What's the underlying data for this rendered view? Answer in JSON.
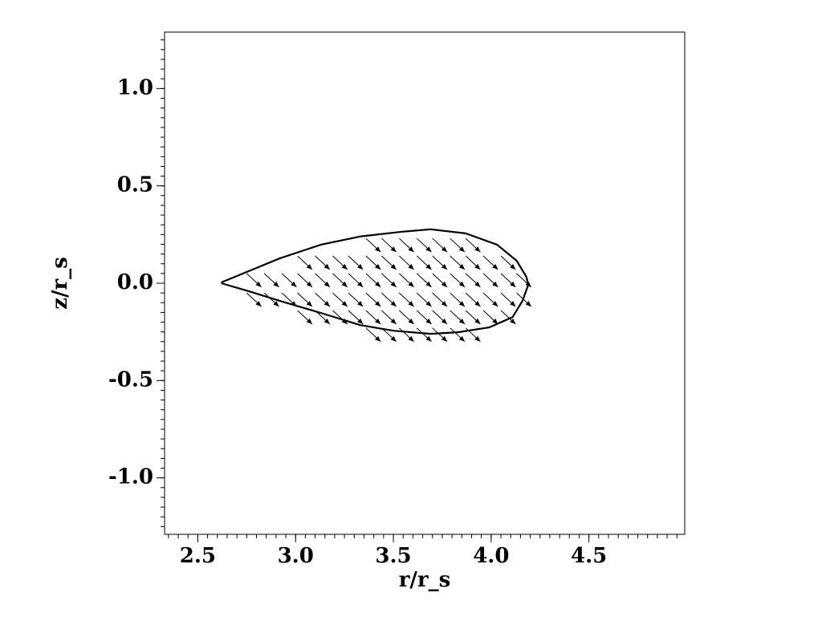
{
  "chart_data": {
    "type": "quiver",
    "xlabel": "r/r_s",
    "ylabel": "z/r_s",
    "xlim": [
      2.33,
      4.99
    ],
    "ylim": [
      -1.29,
      1.29
    ],
    "xticks": [
      2.5,
      {
        "value": 3,
        "label": "3.0"
      },
      3.5,
      {
        "value": 4,
        "label": "4.0"
      },
      4.5
    ],
    "yticks": [
      {
        "value": -1,
        "label": "-1.0"
      },
      -0.5,
      {
        "value": 0,
        "label": "0.0"
      },
      0.5,
      {
        "value": 1,
        "label": "1.0"
      }
    ],
    "xminorticks": [
      2.35,
      2.4,
      2.45,
      2.5,
      2.55,
      2.6,
      2.65,
      2.7,
      2.75,
      2.8,
      2.85,
      2.9,
      2.95,
      3,
      3.05,
      3.1,
      3.15,
      3.2,
      3.25,
      3.3,
      3.35,
      3.4,
      3.45,
      3.5,
      3.55,
      3.6,
      3.65,
      3.7,
      3.75,
      3.8,
      3.85,
      3.9,
      3.95,
      4,
      4.05,
      4.1,
      4.15,
      4.2,
      4.25,
      4.3,
      4.35,
      4.4,
      4.45,
      4.5,
      4.55,
      4.6,
      4.65,
      4.7,
      4.75,
      4.8,
      4.85,
      4.9,
      4.95
    ],
    "yminorticks": [
      -1.25,
      -1.2,
      -1.15,
      -1.1,
      -1.05,
      -1,
      -0.95,
      -0.9,
      -0.85,
      -0.8,
      -0.75,
      -0.7,
      -0.65,
      -0.6,
      -0.55,
      -0.5,
      -0.45,
      -0.4,
      -0.35,
      -0.3,
      -0.25,
      -0.2,
      -0.15,
      -0.1,
      -0.05,
      0,
      0.05,
      0.1,
      0.15,
      0.2,
      0.25,
      0.3,
      0.35,
      0.4,
      0.45,
      0.5,
      0.55,
      0.6,
      0.65,
      0.7,
      0.75,
      0.8,
      0.85,
      0.9,
      0.95,
      1,
      1.05,
      1.1,
      1.15,
      1.2,
      1.25
    ],
    "contour": {
      "color": "#000000",
      "x": [
        2.62,
        2.76,
        2.92,
        3.13,
        3.33,
        3.54,
        3.69,
        3.87,
        4.03,
        4.13,
        4.18,
        4.19,
        4.16,
        4.11,
        3.99,
        3.83,
        3.69,
        3.5,
        3.33,
        3.13,
        2.92,
        2.76,
        2.62
      ],
      "y": [
        0.004,
        0.062,
        0.128,
        0.198,
        0.24,
        0.264,
        0.277,
        0.256,
        0.198,
        0.116,
        0.033,
        -0.008,
        -0.091,
        -0.174,
        -0.227,
        -0.252,
        -0.26,
        -0.244,
        -0.215,
        -0.153,
        -0.091,
        -0.041,
        0
      ]
    },
    "arrows": {
      "color": "#000000",
      "rows": [
        {
          "y": 0.23,
          "x": [
            3.36,
            3.44,
            3.53,
            3.62,
            3.7,
            3.79,
            3.87
          ],
          "u": [
            0.075,
            0.075,
            0.075,
            0.075,
            0.075,
            0.075,
            0.075
          ],
          "v": [
            -0.07,
            -0.07,
            -0.07,
            -0.07,
            -0.07,
            -0.07,
            -0.07
          ]
        },
        {
          "y": 0.14,
          "x": [
            3.01,
            3.1,
            3.19,
            3.27,
            3.36,
            3.44,
            3.53,
            3.62,
            3.7,
            3.79,
            3.87,
            3.96,
            4.05
          ],
          "u": [
            0.075,
            0.075,
            0.075,
            0.075,
            0.075,
            0.075,
            0.075,
            0.075,
            0.075,
            0.075,
            0.075,
            0.075,
            0.075
          ],
          "v": [
            -0.07,
            -0.07,
            -0.07,
            -0.07,
            -0.07,
            -0.07,
            -0.07,
            -0.07,
            -0.07,
            -0.07,
            -0.07,
            -0.07,
            -0.07
          ]
        },
        {
          "y": 0.05,
          "x": [
            2.75,
            2.84,
            2.93,
            3.01,
            3.1,
            3.19,
            3.27,
            3.36,
            3.44,
            3.53,
            3.62,
            3.7,
            3.79,
            3.87,
            3.96,
            4.05,
            4.13
          ],
          "u": [
            0.075,
            0.075,
            0.075,
            0.075,
            0.075,
            0.075,
            0.075,
            0.075,
            0.075,
            0.075,
            0.075,
            0.075,
            0.075,
            0.075,
            0.075,
            0.075,
            0.075
          ],
          "v": [
            -0.07,
            -0.07,
            -0.07,
            -0.07,
            -0.07,
            -0.07,
            -0.07,
            -0.07,
            -0.07,
            -0.07,
            -0.07,
            -0.07,
            -0.07,
            -0.07,
            -0.07,
            -0.07,
            -0.07
          ]
        },
        {
          "y": -0.05,
          "x": [
            2.75,
            2.84,
            2.93,
            3.01,
            3.1,
            3.19,
            3.27,
            3.36,
            3.44,
            3.53,
            3.62,
            3.7,
            3.79,
            3.87,
            3.96,
            4.05,
            4.13
          ],
          "u": [
            0.075,
            0.075,
            0.075,
            0.075,
            0.075,
            0.075,
            0.075,
            0.075,
            0.075,
            0.075,
            0.075,
            0.075,
            0.075,
            0.075,
            0.075,
            0.075,
            0.075
          ],
          "v": [
            -0.07,
            -0.07,
            -0.07,
            -0.07,
            -0.07,
            -0.07,
            -0.07,
            -0.07,
            -0.07,
            -0.07,
            -0.07,
            -0.07,
            -0.07,
            -0.07,
            -0.07,
            -0.07,
            -0.07
          ]
        },
        {
          "y": -0.14,
          "x": [
            3.01,
            3.1,
            3.19,
            3.27,
            3.36,
            3.44,
            3.53,
            3.62,
            3.7,
            3.79,
            3.87,
            3.96,
            4.05
          ],
          "u": [
            0.075,
            0.075,
            0.075,
            0.075,
            0.075,
            0.075,
            0.075,
            0.075,
            0.075,
            0.075,
            0.075,
            0.075,
            0.075
          ],
          "v": [
            -0.07,
            -0.07,
            -0.07,
            -0.07,
            -0.07,
            -0.07,
            -0.07,
            -0.07,
            -0.07,
            -0.07,
            -0.07,
            -0.07,
            -0.07
          ]
        },
        {
          "y": -0.23,
          "x": [
            3.36,
            3.44,
            3.53,
            3.62,
            3.7,
            3.79,
            3.87
          ],
          "u": [
            0.075,
            0.075,
            0.075,
            0.075,
            0.075,
            0.075,
            0.075
          ],
          "v": [
            -0.07,
            -0.07,
            -0.07,
            -0.07,
            -0.07,
            -0.07,
            -0.07
          ]
        }
      ]
    }
  }
}
